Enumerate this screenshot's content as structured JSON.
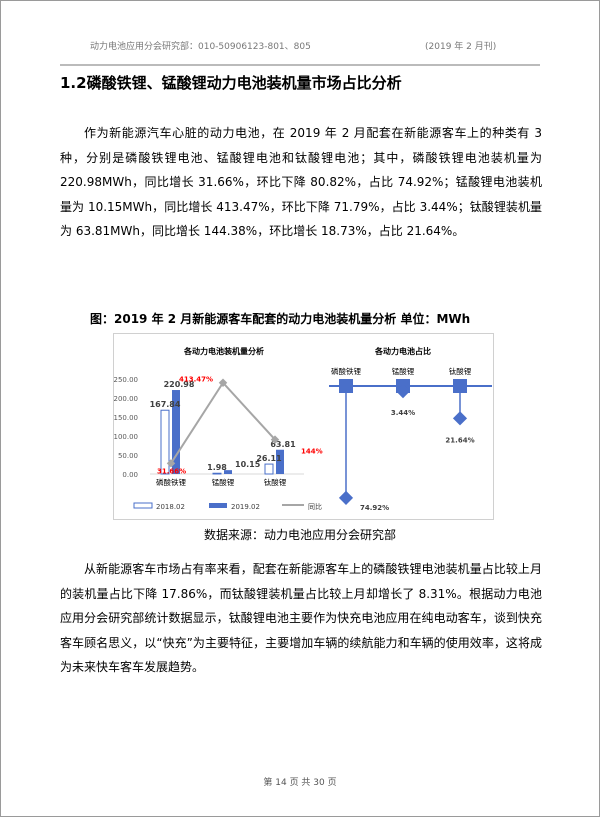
{
  "header": {
    "left": "动力电池应用分会研究部：010-50906123-801、805",
    "right": "(2019 年 2 月刊)"
  },
  "section_title": "1.2磷酸铁锂、锰酸锂动力电池装机量市场占比分析",
  "paragraph1": "作为新能源汽车心脏的动力电池，在 2019 年 2 月配套在新能源客车上的种类有 3 种，分别是磷酸铁锂电池、锰酸锂电池和钛酸锂电池；其中，磷酸铁锂电池装机量为 220.98MWh，同比增长 31.66%，环比下降 80.82%，占比 74.92%；锰酸锂电池装机量为 10.15MWh，同比增长 413.47%，环比下降 71.79%，占比 3.44%；钛酸锂装机量为 63.81MWh，同比增长 144.38%，环比增长 18.73%，占比 21.64%。",
  "figure_caption": "图：2019 年 2 月新能源客车配套的动力电池装机量分析   单位：MWh",
  "source": "数据来源：动力电池应用分会研究部",
  "paragraph2": "从新能源客车市场占有率来看，配套在新能源客车上的磷酸铁锂电池装机量占比较上月的装机量占比下降 17.86%，而钛酸锂装机量占比较上月却增长了 8.31%。根据动力电池应用分会研究部统计数据显示，钛酸锂电池主要作为快充电池应用在纯电动客车，谈到快充客车顾名思义，以“快充”为主要特征，主要增加车辆的续航能力和车辆的使用效率，这将成为未来快车客车发展趋势。",
  "footer": "第 14 页 共 30 页",
  "chart_data": [
    {
      "type": "bar",
      "title": "各动力电池装机量分析",
      "categories": [
        "磷酸铁锂",
        "锰酸锂",
        "钛酸锂"
      ],
      "ylim": [
        0,
        250
      ],
      "yticks": [
        "0.00",
        "50.00",
        "100.00",
        "150.00",
        "200.00",
        "250.00"
      ],
      "series": [
        {
          "name": "2018.02",
          "values": [
            167.84,
            1.98,
            26.11
          ],
          "labels": [
            "167.84",
            "1.98",
            "26.11"
          ],
          "color": "#4a6fc9",
          "style": "outline"
        },
        {
          "name": "2019.02",
          "values": [
            220.98,
            10.15,
            63.81
          ],
          "labels": [
            "220.98",
            "10.15",
            "63.81"
          ],
          "color": "#4a6fc9",
          "style": "filled"
        },
        {
          "name": "同比",
          "type": "line",
          "values": [
            31.66,
            413.47,
            144
          ],
          "labels": [
            "31.66%",
            "413.47%",
            "144%"
          ],
          "color": "#a6a6a6",
          "label_color": "#ff0000"
        }
      ],
      "legend": "bottom"
    },
    {
      "type": "dot",
      "title": "各动力电池占比",
      "categories": [
        "磷酸铁锂",
        "锰酸锂",
        "钛酸锂"
      ],
      "values": [
        74.92,
        3.44,
        21.64
      ],
      "labels": [
        "74.92%",
        "3.44%",
        "21.64%"
      ],
      "color": "#4a6fc9"
    }
  ]
}
